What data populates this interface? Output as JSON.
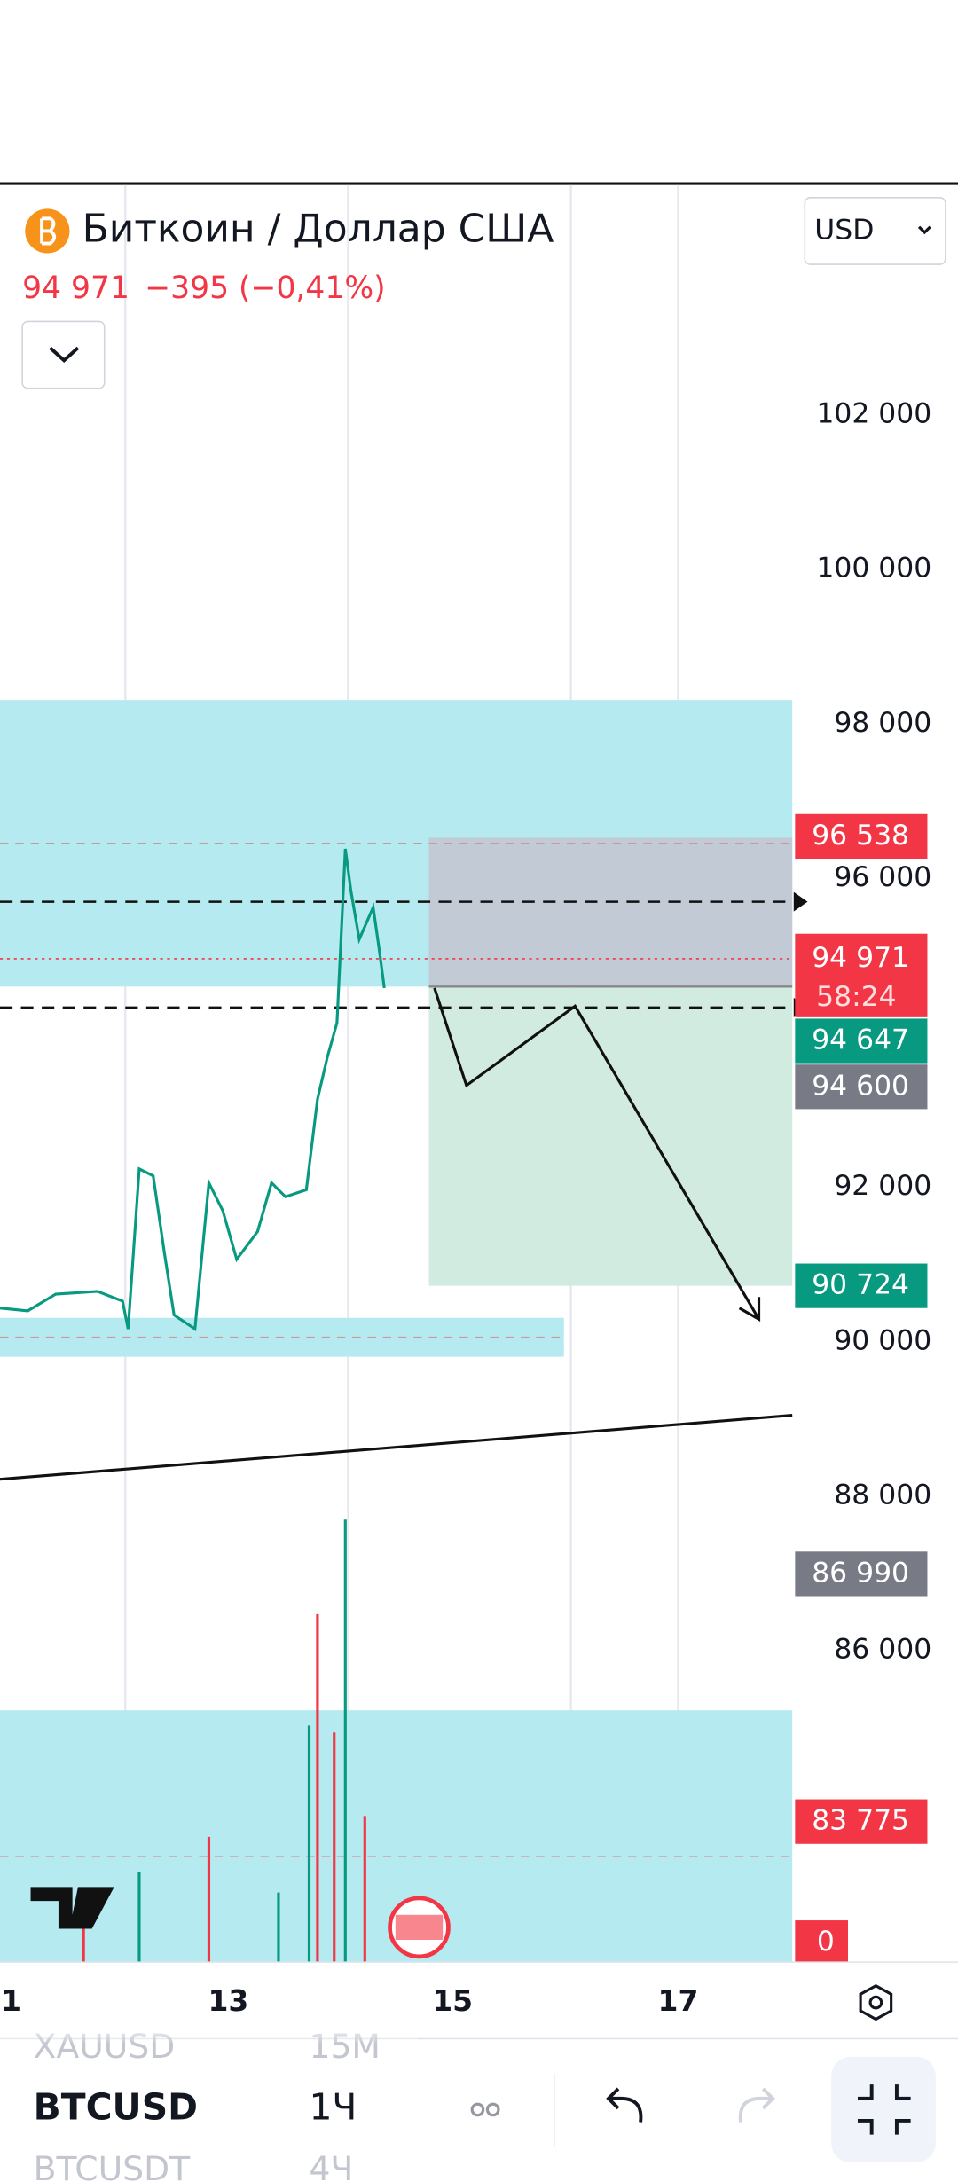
{
  "header": {
    "title": "Биткоин / Доллар США",
    "price": "94 971",
    "change": "−395 (−0,41%)",
    "currency": "USD"
  },
  "price_axis": {
    "ylim": [
      81964,
      104973
    ],
    "ticks": [
      {
        "value": 102000,
        "label": "102 000"
      },
      {
        "value": 100000,
        "label": "100 000"
      },
      {
        "value": 98000,
        "label": "98 000"
      },
      {
        "value": 96000,
        "label": "96 000"
      },
      {
        "value": 92000,
        "label": "92 000"
      },
      {
        "value": 90000,
        "label": "90 000"
      },
      {
        "value": 88000,
        "label": "88 000"
      },
      {
        "value": 86000,
        "label": "86 000"
      }
    ]
  },
  "price_badges": [
    {
      "label": "96 538",
      "color": "#f23645"
    },
    {
      "label": "94 971",
      "sub": "58:24",
      "color": "#f23645"
    },
    {
      "label": "94 647",
      "color": "#089981"
    },
    {
      "label": "94 600",
      "color": "#787b86"
    },
    {
      "label": "90 724",
      "color": "#089981"
    },
    {
      "label": "86 990",
      "color": "#787b86"
    },
    {
      "label": "83 775",
      "color": "#f23645"
    }
  ],
  "volume_badge": "0",
  "time_axis": [
    "1",
    "13",
    "15",
    "17"
  ],
  "bottom_bar": {
    "symbols": [
      "XAUUSD",
      "BTCUSD",
      "BTCUSDT"
    ],
    "intervals": [
      "15М",
      "1Ч",
      "4Ч"
    ]
  }
}
